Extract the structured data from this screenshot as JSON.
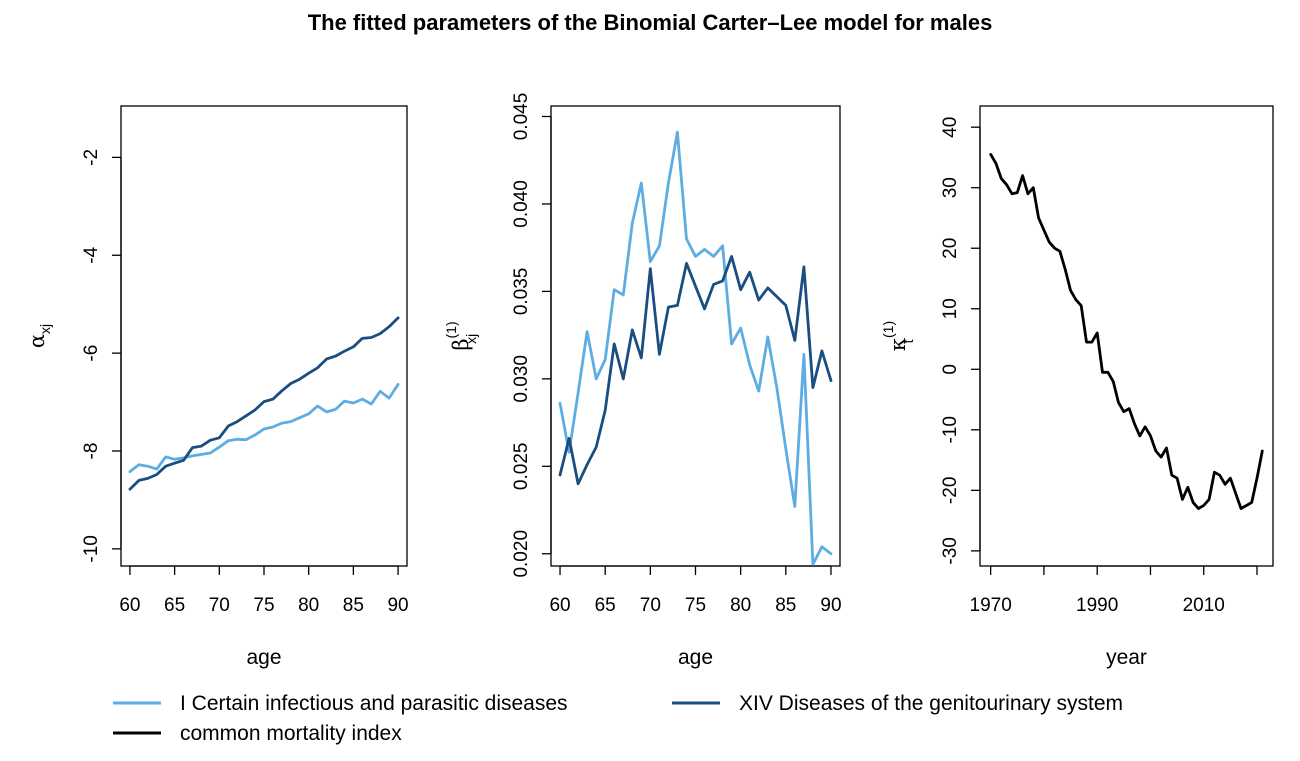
{
  "title": "The fitted parameters of the Binomial Carter–Lee model for males",
  "colors": {
    "infectious": "#5dade2",
    "genitourinary": "#1a4e80",
    "common": "#000000"
  },
  "legend": {
    "items": [
      {
        "label": "I Certain infectious and parasitic diseases",
        "color": "#5dade2"
      },
      {
        "label": "XIV Diseases of the genitourinary system",
        "color": "#1a4e80"
      },
      {
        "label": "common mortality index",
        "color": "#000000"
      }
    ]
  },
  "chart_data": [
    {
      "type": "line",
      "xlabel": "age",
      "ylabel": {
        "symbol": "α",
        "subscript": "xj",
        "superscript": ""
      },
      "xlim": [
        59,
        91
      ],
      "ylim": [
        -10.35,
        -0.95
      ],
      "xticks": [
        60,
        65,
        70,
        75,
        80,
        85,
        90
      ],
      "yticks": [
        -10,
        -8,
        -6,
        -4,
        -2
      ],
      "x": [
        60,
        61,
        62,
        63,
        64,
        65,
        66,
        67,
        68,
        69,
        70,
        71,
        72,
        73,
        74,
        75,
        76,
        77,
        78,
        79,
        80,
        81,
        82,
        83,
        84,
        85,
        86,
        87,
        88,
        89,
        90
      ],
      "series": [
        {
          "name": "I Certain infectious and parasitic diseases",
          "colorKey": "infectious",
          "values": [
            -8.42,
            -8.28,
            -8.31,
            -8.37,
            -8.12,
            -8.17,
            -8.14,
            -8.1,
            -8.07,
            -8.04,
            -7.92,
            -7.79,
            -7.76,
            -7.77,
            -7.67,
            -7.55,
            -7.51,
            -7.43,
            -7.4,
            -7.32,
            -7.24,
            -7.08,
            -7.2,
            -7.15,
            -6.98,
            -7.02,
            -6.94,
            -7.04,
            -6.78,
            -6.92,
            -6.64
          ]
        },
        {
          "name": "XIV Diseases of the genitourinary system",
          "colorKey": "genitourinary",
          "values": [
            -8.78,
            -8.6,
            -8.56,
            -8.48,
            -8.31,
            -8.25,
            -8.19,
            -7.93,
            -7.9,
            -7.78,
            -7.73,
            -7.49,
            -7.4,
            -7.28,
            -7.16,
            -6.99,
            -6.94,
            -6.77,
            -6.62,
            -6.53,
            -6.41,
            -6.3,
            -6.12,
            -6.06,
            -5.96,
            -5.87,
            -5.7,
            -5.68,
            -5.6,
            -5.46,
            -5.28
          ]
        }
      ]
    },
    {
      "type": "line",
      "xlabel": "age",
      "ylabel": {
        "symbol": "β",
        "subscript": "xj",
        "superscript": "(1)"
      },
      "xlim": [
        59,
        91
      ],
      "ylim": [
        0.0193,
        0.0456
      ],
      "xticks": [
        60,
        65,
        70,
        75,
        80,
        85,
        90
      ],
      "yticks": [
        0.02,
        0.025,
        0.03,
        0.035,
        0.04,
        0.045
      ],
      "yticklabels": [
        "0.020",
        "0.025",
        "0.030",
        "0.035",
        "0.040",
        "0.045"
      ],
      "x": [
        60,
        61,
        62,
        63,
        64,
        65,
        66,
        67,
        68,
        69,
        70,
        71,
        72,
        73,
        74,
        75,
        76,
        77,
        78,
        79,
        80,
        81,
        82,
        83,
        84,
        85,
        86,
        87,
        88,
        89,
        90
      ],
      "series": [
        {
          "name": "I Certain infectious and parasitic diseases",
          "colorKey": "infectious",
          "values": [
            0.0286,
            0.0258,
            0.0292,
            0.0327,
            0.03,
            0.0311,
            0.0351,
            0.0348,
            0.0389,
            0.0412,
            0.0367,
            0.0376,
            0.0412,
            0.0441,
            0.038,
            0.037,
            0.0374,
            0.037,
            0.0376,
            0.032,
            0.0329,
            0.0308,
            0.0293,
            0.0324,
            0.0295,
            0.026,
            0.0227,
            0.0314,
            0.0194,
            0.0204,
            0.02
          ]
        },
        {
          "name": "XIV Diseases of the genitourinary system",
          "colorKey": "genitourinary",
          "values": [
            0.0245,
            0.0266,
            0.024,
            0.0251,
            0.0261,
            0.0282,
            0.032,
            0.03,
            0.0328,
            0.0312,
            0.0363,
            0.0314,
            0.0341,
            0.0342,
            0.0366,
            0.0353,
            0.034,
            0.0354,
            0.0356,
            0.037,
            0.0351,
            0.0361,
            0.0345,
            0.0352,
            0.0347,
            0.0342,
            0.0322,
            0.0364,
            0.0295,
            0.0316,
            0.0299
          ]
        }
      ]
    },
    {
      "type": "line",
      "xlabel": "year",
      "ylabel": {
        "symbol": "κ",
        "subscript": "t",
        "superscript": "(1)"
      },
      "xlim": [
        1968,
        2023
      ],
      "ylim": [
        -32.5,
        43.5
      ],
      "xticks": [
        1970,
        1990,
        2010
      ],
      "xminorticks": [
        1980,
        2000,
        2020
      ],
      "yticks": [
        -30,
        -20,
        -10,
        0,
        10,
        20,
        30,
        40
      ],
      "x": [
        1970,
        1971,
        1972,
        1973,
        1974,
        1975,
        1976,
        1977,
        1978,
        1979,
        1980,
        1981,
        1982,
        1983,
        1984,
        1985,
        1986,
        1987,
        1988,
        1989,
        1990,
        1991,
        1992,
        1993,
        1994,
        1995,
        1996,
        1997,
        1998,
        1999,
        2000,
        2001,
        2002,
        2003,
        2004,
        2005,
        2006,
        2007,
        2008,
        2009,
        2010,
        2011,
        2012,
        2013,
        2014,
        2015,
        2016,
        2017,
        2018,
        2019,
        2020,
        2021
      ],
      "series": [
        {
          "name": "common mortality index",
          "colorKey": "common",
          "values": [
            35.5,
            34.0,
            31.5,
            30.5,
            29.0,
            29.2,
            32.0,
            29.0,
            30.0,
            25.0,
            23.0,
            21.0,
            20.0,
            19.5,
            16.5,
            13.0,
            11.5,
            10.5,
            4.5,
            4.5,
            6.0,
            -0.5,
            -0.5,
            -2.0,
            -5.5,
            -7.0,
            -6.5,
            -9.0,
            -11.0,
            -9.5,
            -11.0,
            -13.5,
            -14.5,
            -13.0,
            -17.5,
            -18.0,
            -21.5,
            -19.5,
            -22.0,
            -23.0,
            -22.5,
            -21.5,
            -17.0,
            -17.5,
            -19.0,
            -18.0,
            -20.5,
            -23.0,
            -22.5,
            -22.0,
            -18.0,
            -13.5
          ]
        }
      ]
    }
  ]
}
